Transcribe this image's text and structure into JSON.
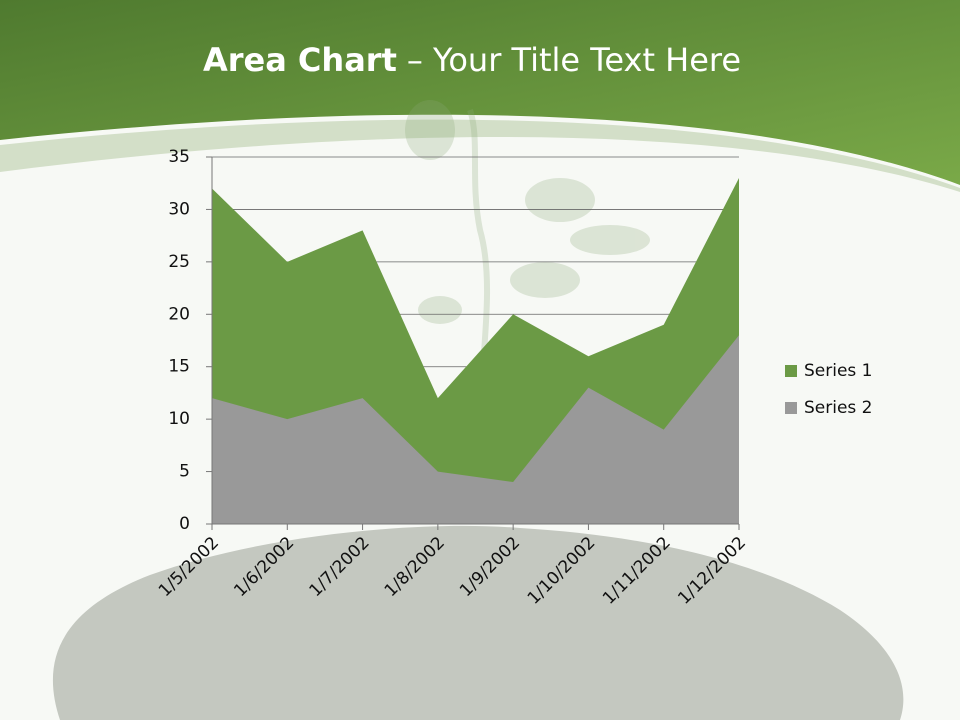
{
  "chart_data": {
    "type": "area",
    "title": [
      "Area Chart",
      "– Your Title Text Here"
    ],
    "categories": [
      "1/5/2002",
      "1/6/2002",
      "1/7/2002",
      "1/8/2002",
      "1/9/2002",
      "1/10/2002",
      "1/11/2002",
      "1/12/2002"
    ],
    "series": [
      {
        "name": "Series 1",
        "color": "#6b9a45",
        "values": [
          32,
          25,
          28,
          12,
          20,
          16,
          19,
          33
        ]
      },
      {
        "name": "Series 2",
        "color": "#999999",
        "values": [
          12,
          10,
          12,
          5,
          4,
          13,
          9,
          18
        ]
      }
    ],
    "ylim": [
      0,
      35
    ],
    "yticks": [
      0,
      5,
      10,
      15,
      20,
      25,
      30,
      35
    ],
    "grid": true,
    "legend": "right"
  }
}
